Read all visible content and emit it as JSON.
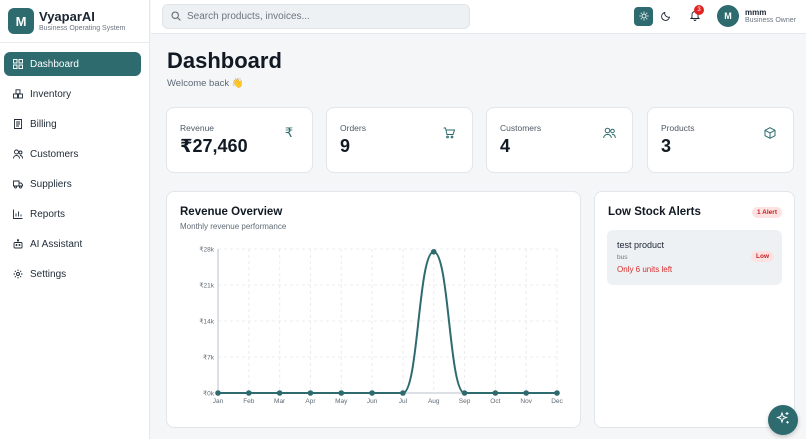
{
  "brand": {
    "logo_letter": "M",
    "name": "VyaparAI",
    "subtitle": "Business Operating System"
  },
  "sidebar": {
    "items": [
      {
        "label": "Dashboard",
        "icon": "dashboard-icon",
        "active": true
      },
      {
        "label": "Inventory",
        "icon": "boxes-icon",
        "active": false
      },
      {
        "label": "Billing",
        "icon": "receipt-icon",
        "active": false
      },
      {
        "label": "Customers",
        "icon": "users-icon",
        "active": false
      },
      {
        "label": "Suppliers",
        "icon": "truck-icon",
        "active": false
      },
      {
        "label": "Reports",
        "icon": "bar-chart-icon",
        "active": false
      },
      {
        "label": "AI Assistant",
        "icon": "bot-icon",
        "active": false
      },
      {
        "label": "Settings",
        "icon": "gear-icon",
        "active": false
      }
    ]
  },
  "topbar": {
    "search_placeholder": "Search products, invoices...",
    "notification_count": "3",
    "user": {
      "initial": "M",
      "name": "mmm",
      "role": "Business Owner"
    }
  },
  "page": {
    "title": "Dashboard",
    "welcome": "Welcome back 👋"
  },
  "stats": [
    {
      "label": "Revenue",
      "value": "₹27,460",
      "icon": "rupee-icon"
    },
    {
      "label": "Orders",
      "value": "9",
      "icon": "cart-icon"
    },
    {
      "label": "Customers",
      "value": "4",
      "icon": "users-icon"
    },
    {
      "label": "Products",
      "value": "3",
      "icon": "package-icon"
    }
  ],
  "revenue": {
    "title": "Revenue Overview",
    "subtitle": "Monthly revenue performance"
  },
  "chart_data": {
    "type": "line",
    "title": "Revenue Overview",
    "subtitle": "Monthly revenue performance",
    "categories": [
      "Jan",
      "Feb",
      "Mar",
      "Apr",
      "May",
      "Jun",
      "Jul",
      "Aug",
      "Sep",
      "Oct",
      "Nov",
      "Dec"
    ],
    "values": [
      0,
      0,
      0,
      0,
      0,
      0,
      0,
      27460,
      0,
      0,
      0,
      0
    ],
    "yticks": [
      "₹0k",
      "₹7k",
      "₹14k",
      "₹21k",
      "₹28k"
    ],
    "ylim": [
      0,
      28000
    ],
    "grid": true,
    "line_color": "#2d6b6f"
  },
  "alerts": {
    "title": "Low Stock Alerts",
    "badge": "1 Alert",
    "items": [
      {
        "name": "test product",
        "category": "bus",
        "units": "Only 6 units left",
        "level": "Low"
      }
    ]
  },
  "colors": {
    "accent": "#2d6b6f",
    "danger": "#d92d2d"
  }
}
